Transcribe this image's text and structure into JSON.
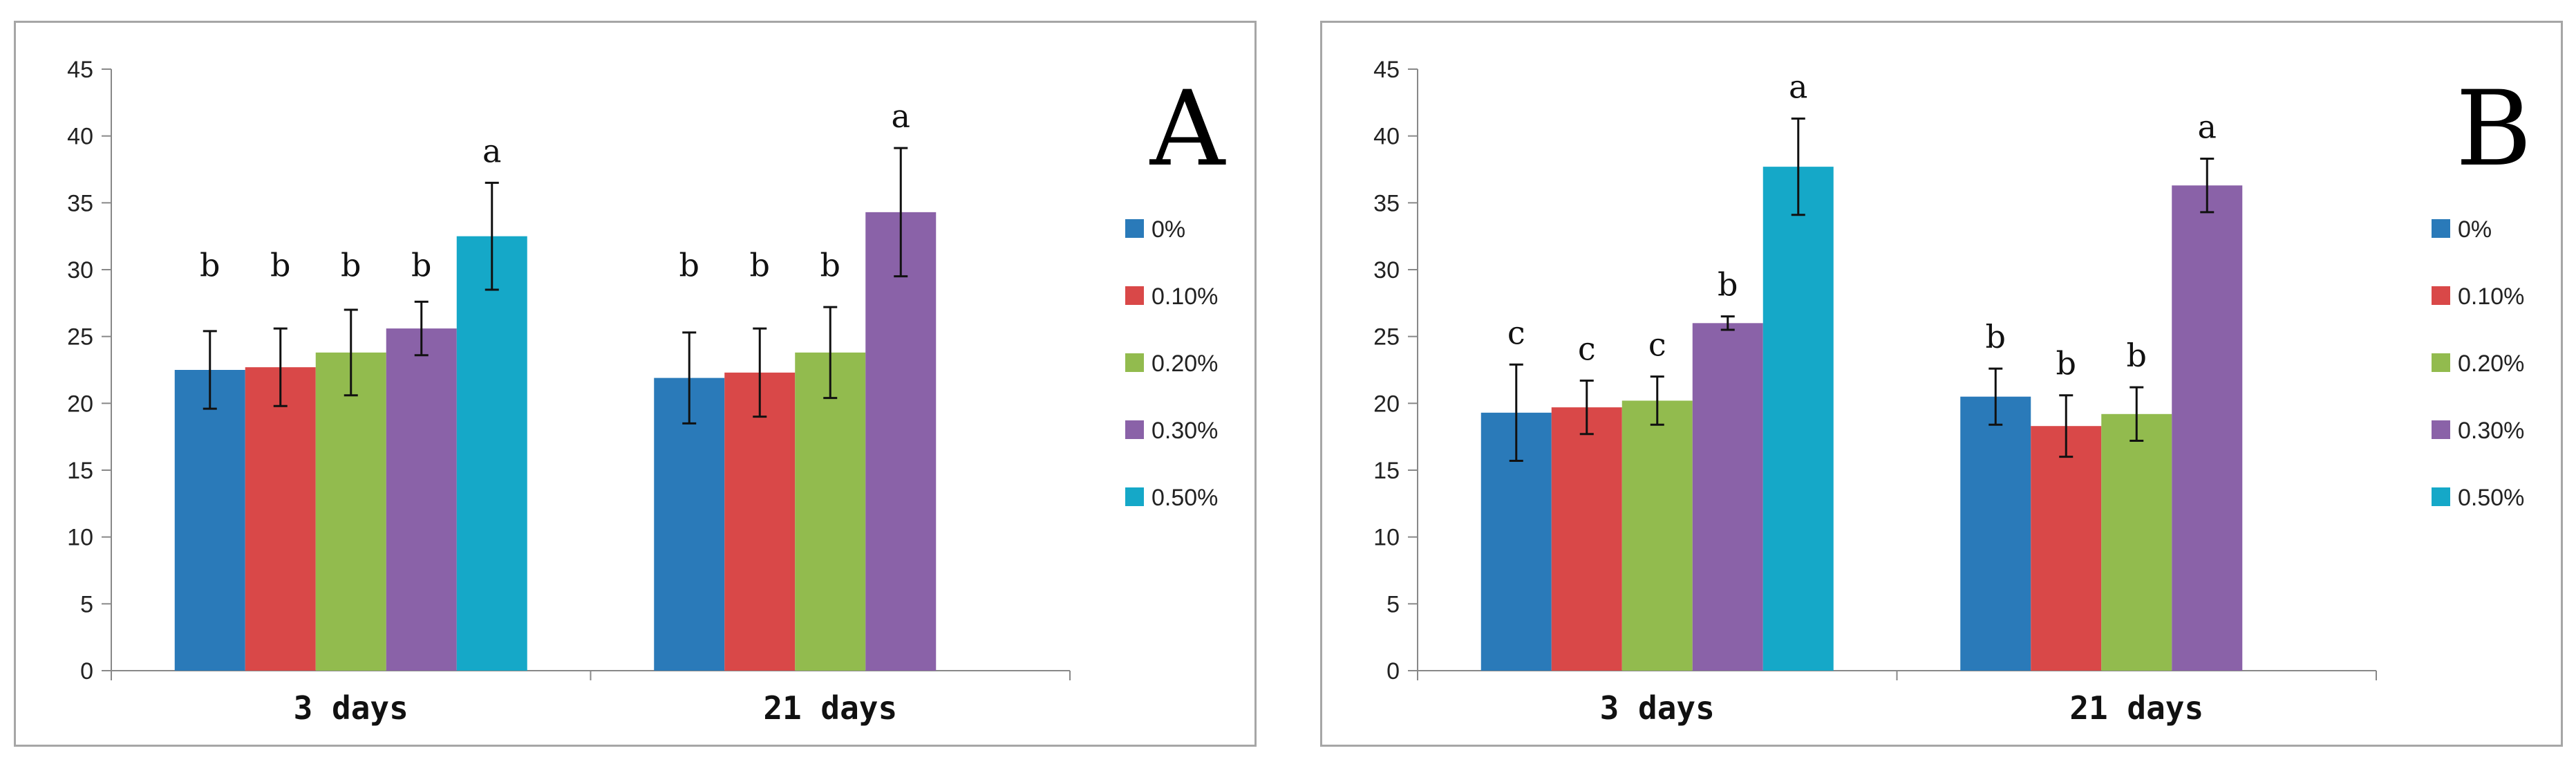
{
  "chart_data": [
    {
      "type": "bar",
      "panel_label": "A",
      "categories": [
        "3  days",
        "21  days"
      ],
      "series": [
        {
          "name": "0%",
          "color": "#2a7ab9",
          "values": [
            22.5,
            21.9
          ],
          "errors": [
            2.9,
            3.4
          ],
          "labels": [
            "b",
            "b"
          ]
        },
        {
          "name": "0.10%",
          "color": "#d94848",
          "values": [
            22.7,
            22.3
          ],
          "errors": [
            2.9,
            3.3
          ],
          "labels": [
            "b",
            "b"
          ]
        },
        {
          "name": "0.20%",
          "color": "#92bb4e",
          "values": [
            23.8,
            23.8
          ],
          "errors": [
            3.2,
            3.4
          ],
          "labels": [
            "b",
            "b"
          ]
        },
        {
          "name": "0.30%",
          "color": "#8a62a8",
          "values": [
            25.6,
            34.3
          ],
          "errors": [
            2.0,
            4.8
          ],
          "labels": [
            "b",
            "a"
          ]
        },
        {
          "name": "0.50%",
          "color": "#15a8c8",
          "values": [
            32.5,
            null
          ],
          "errors": [
            4.0,
            null
          ],
          "labels": [
            "a",
            null
          ]
        }
      ],
      "ylim": [
        0,
        45
      ],
      "yticks": [
        "0",
        "5",
        "10",
        "15",
        "20",
        "25",
        "30",
        "35",
        "40",
        "45"
      ],
      "legend_position": "right"
    },
    {
      "type": "bar",
      "panel_label": "B",
      "categories": [
        "3  days",
        "21  days"
      ],
      "series": [
        {
          "name": "0%",
          "color": "#2a7ab9",
          "values": [
            19.3,
            20.5
          ],
          "errors": [
            3.6,
            2.1
          ],
          "labels": [
            "c",
            "b"
          ]
        },
        {
          "name": "0.10%",
          "color": "#d94848",
          "values": [
            19.7,
            18.3
          ],
          "errors": [
            2.0,
            2.3
          ],
          "labels": [
            "c",
            "b"
          ]
        },
        {
          "name": "0.20%",
          "color": "#92bb4e",
          "values": [
            20.2,
            19.2
          ],
          "errors": [
            1.8,
            2.0
          ],
          "labels": [
            "c",
            "b"
          ]
        },
        {
          "name": "0.30%",
          "color": "#8a62a8",
          "values": [
            26.0,
            36.3
          ],
          "errors": [
            0.5,
            2.0
          ],
          "labels": [
            "b",
            "a"
          ]
        },
        {
          "name": "0.50%",
          "color": "#15a8c8",
          "values": [
            37.7,
            null
          ],
          "errors": [
            3.6,
            null
          ],
          "labels": [
            "a",
            null
          ]
        }
      ],
      "ylim": [
        0,
        45
      ],
      "yticks": [
        "0",
        "5",
        "10",
        "15",
        "20",
        "25",
        "30",
        "35",
        "40",
        "45"
      ],
      "legend_position": "right"
    }
  ]
}
